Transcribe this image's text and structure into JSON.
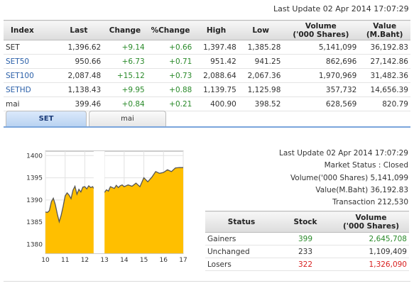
{
  "last_update_top": "Last Update 02 Apr 2014 17:07:29",
  "index_table": {
    "headers": [
      "Index",
      "Last",
      "Change",
      "%Change",
      "High",
      "Low",
      "Volume\n('000 Shares)",
      "Value\n(M.Baht)"
    ],
    "rows": [
      {
        "name": "SET",
        "last": "1,396.62",
        "change": "+9.14",
        "pct": "+0.66",
        "high": "1,397.48",
        "low": "1,385.28",
        "volume": "5,141,099",
        "value": "36,192.83"
      },
      {
        "name": "SET50",
        "last": "950.66",
        "change": "+6.73",
        "pct": "+0.71",
        "high": "951.42",
        "low": "941.25",
        "volume": "862,696",
        "value": "27,142.86"
      },
      {
        "name": "SET100",
        "last": "2,087.48",
        "change": "+15.12",
        "pct": "+0.73",
        "high": "2,088.64",
        "low": "2,067.36",
        "volume": "1,970,969",
        "value": "31,482.36"
      },
      {
        "name": "SETHD",
        "last": "1,138.43",
        "change": "+9.95",
        "pct": "+0.88",
        "high": "1,139.75",
        "low": "1,125.98",
        "volume": "357,732",
        "value": "14,656.39"
      },
      {
        "name": "mai",
        "last": "399.46",
        "change": "+0.84",
        "pct": "+0.21",
        "high": "400.90",
        "low": "398.52",
        "volume": "628,569",
        "value": "820.79"
      }
    ]
  },
  "tabs": [
    {
      "label": "SET",
      "active": true
    },
    {
      "label": "mai",
      "active": false
    }
  ],
  "colors": {
    "up": "#2a8a2a",
    "down": "#d82020",
    "link": "#2a5fa8",
    "area": "#ffbf00",
    "line": "#555555"
  },
  "chart_data": {
    "type": "area",
    "title": "",
    "xlabel": "",
    "ylabel": "",
    "ylim": [
      1378,
      1401
    ],
    "xlim": [
      10,
      17
    ],
    "x_ticks": [
      "10",
      "11",
      "12",
      "13",
      "14",
      "15",
      "16",
      "17"
    ],
    "y_ticks": [
      1380,
      1385,
      1390,
      1395,
      1400
    ],
    "grid": true,
    "gap_x": [
      12.45,
      13.0
    ],
    "x": [
      10.0,
      10.1,
      10.2,
      10.3,
      10.4,
      10.5,
      10.6,
      10.7,
      10.8,
      10.9,
      11.0,
      11.1,
      11.2,
      11.3,
      11.4,
      11.5,
      11.6,
      11.7,
      11.8,
      11.9,
      12.0,
      12.1,
      12.2,
      12.3,
      12.4,
      12.45,
      13.0,
      13.1,
      13.2,
      13.3,
      13.4,
      13.5,
      13.6,
      13.7,
      13.8,
      13.9,
      14.0,
      14.2,
      14.4,
      14.6,
      14.8,
      15.0,
      15.2,
      15.4,
      15.6,
      15.8,
      16.0,
      16.2,
      16.4,
      16.6,
      16.8,
      17.0
    ],
    "values": [
      1387.3,
      1387.2,
      1387.6,
      1389.6,
      1390.4,
      1389.0,
      1386.9,
      1385.1,
      1386.6,
      1388.6,
      1390.9,
      1391.6,
      1391.1,
      1390.3,
      1392.2,
      1393.1,
      1391.3,
      1392.4,
      1391.8,
      1392.9,
      1393.0,
      1392.5,
      1393.2,
      1392.8,
      1393.0,
      1392.6,
      1391.7,
      1392.3,
      1392.0,
      1393.0,
      1392.8,
      1392.6,
      1393.3,
      1392.8,
      1393.2,
      1393.4,
      1393.0,
      1393.4,
      1393.1,
      1393.8,
      1393.0,
      1395.0,
      1394.1,
      1395.1,
      1396.4,
      1396.0,
      1396.2,
      1396.8,
      1396.4,
      1397.2,
      1397.3,
      1397.3
    ]
  },
  "market_info": {
    "last_update": "Last Update 02 Apr 2014 17:07:29",
    "status": "Market Status : Closed",
    "volume": "Volume('000 Shares) 5,141,099",
    "value": "Value(M.Baht) 36,192.83",
    "transaction": "Transaction 212,530"
  },
  "summary_table": {
    "headers": [
      "Status",
      "Stock",
      "Volume\n('000 Shares)"
    ],
    "rows": [
      {
        "status": "Gainers",
        "stock": "399",
        "volume": "2,645,708",
        "tone": "green"
      },
      {
        "status": "Unchanged",
        "stock": "233",
        "volume": "1,109,409",
        "tone": ""
      },
      {
        "status": "Losers",
        "stock": "322",
        "volume": "1,326,090",
        "tone": "red"
      }
    ]
  }
}
